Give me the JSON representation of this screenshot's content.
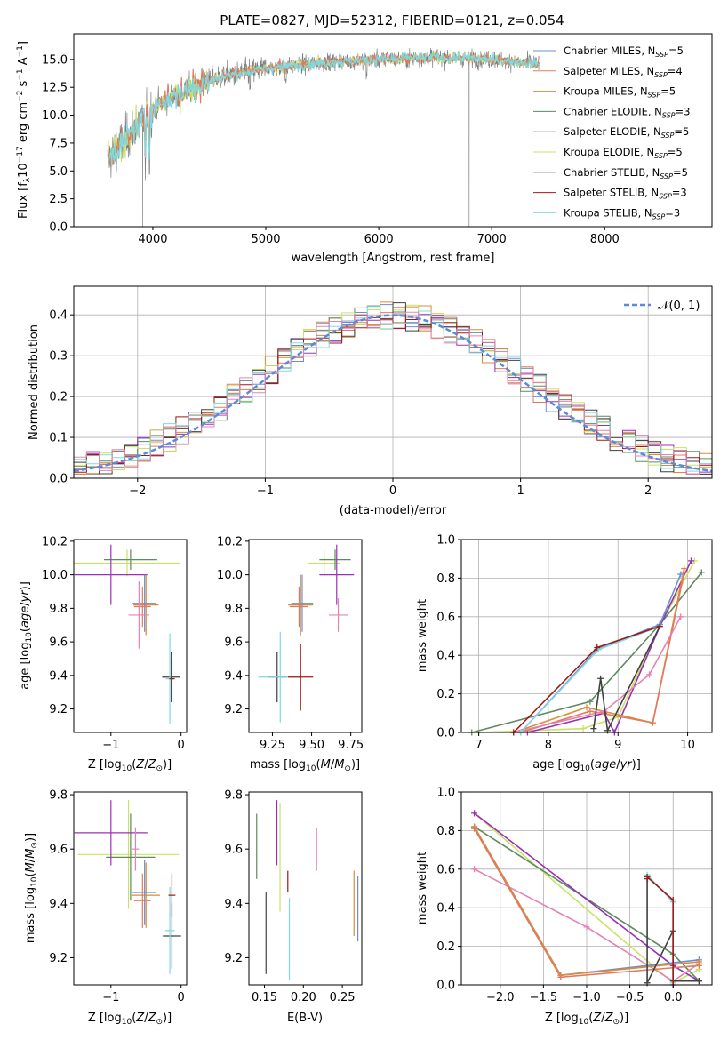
{
  "figure": {
    "title": "PLATE=0827, MJD=52312, FIBERID=0121, z=0.054"
  },
  "colors": {
    "Chabrier MILES": "#6b8ecf",
    "Salpeter MILES": "#e07a5f",
    "Kroupa MILES": "#d98c3a",
    "Chabrier ELODIE": "#5e8a5e",
    "Salpeter ELODIE": "#9b30b8",
    "Kroupa ELODIE": "#c9e265",
    "Chabrier STELIB": "#404040",
    "Salpeter STELIB": "#a01818",
    "Kroupa STELIB": "#80d8e0",
    "data": "#808080",
    "extra_pink": "#e383b4"
  },
  "chart_data": [
    {
      "id": "spectrum",
      "type": "line",
      "title": "PLATE=0827, MJD=52312, FIBERID=0121, z=0.054",
      "xlabel": "wavelength [Angstrom, rest frame]",
      "ylabel_parts": {
        "a": "Flux [f",
        "b": "λ",
        "c": "10",
        "d": "−17",
        "e": " erg cm",
        "f": "−2",
        "g": " s",
        "h": "−1",
        "i": " A",
        "j": "−1",
        "k": "]"
      },
      "xlim": [
        3300,
        8950
      ],
      "ylim": [
        0,
        17.3
      ],
      "xticks": [
        4000,
        5000,
        6000,
        7000,
        8000
      ],
      "yticks": [
        0.0,
        2.5,
        5.0,
        7.5,
        10.0,
        12.5,
        15.0
      ],
      "ytick_labels": [
        "0.0",
        "2.5",
        "5.0",
        "7.5",
        "10.0",
        "12.5",
        "15.0"
      ],
      "legend_position": "right",
      "legend": [
        {
          "model": "Chabrier MILES",
          "nssp": "5"
        },
        {
          "model": "Salpeter MILES",
          "nssp": "4"
        },
        {
          "model": "Kroupa MILES",
          "nssp": "5"
        },
        {
          "model": "Chabrier ELODIE",
          "nssp": "3"
        },
        {
          "model": "Salpeter ELODIE",
          "nssp": "5"
        },
        {
          "model": "Kroupa ELODIE",
          "nssp": "5"
        },
        {
          "model": "Chabrier STELIB",
          "nssp": "5"
        },
        {
          "model": "Salpeter STELIB",
          "nssp": "3"
        },
        {
          "model": "Kroupa STELIB",
          "nssp": "3"
        }
      ],
      "data_range": [
        3600,
        7420
      ],
      "continuum": [
        [
          3600,
          6.0
        ],
        [
          3750,
          7.8
        ],
        [
          3900,
          9.5
        ],
        [
          4050,
          11.0
        ],
        [
          4300,
          12.3
        ],
        [
          4600,
          13.4
        ],
        [
          5000,
          14.2
        ],
        [
          5500,
          14.7
        ],
        [
          6000,
          15.0
        ],
        [
          6500,
          15.2
        ],
        [
          7000,
          15.0
        ],
        [
          7420,
          14.6
        ]
      ],
      "features": [
        {
          "x": 3910,
          "y": 0.0
        },
        {
          "x": 6800,
          "y": 0.0
        },
        {
          "x": 7420,
          "y": 0.0
        }
      ]
    },
    {
      "id": "residuals",
      "type": "line",
      "xlabel": "(data-model)/error",
      "ylabel": "Normed distribution",
      "xlim": [
        -2.5,
        2.5
      ],
      "ylim": [
        0,
        0.47
      ],
      "xticks": [
        -2,
        -1,
        0,
        1,
        2
      ],
      "xtick_labels": [
        "−2",
        "−1",
        "0",
        "1",
        "2"
      ],
      "yticks": [
        0.0,
        0.1,
        0.2,
        0.3,
        0.4
      ],
      "ytick_labels": [
        "0.0",
        "0.1",
        "0.2",
        "0.3",
        "0.4"
      ],
      "grid": true,
      "legend_position": "top-right",
      "legend": [
        "𝒩(0, 1)"
      ],
      "gaussian": {
        "mean": 0,
        "sigma": 1
      },
      "bins": {
        "start": -2.5,
        "width": 0.1,
        "count": 50
      }
    },
    {
      "id": "age-vs-Z",
      "type": "scatter",
      "xlabel": "Z [log10(Z/Z⊙)]",
      "ylabel": "age [log10(age/yr)]",
      "xlim": [
        -1.53,
        0.08
      ],
      "ylim": [
        9.06,
        10.21
      ],
      "xticks": [
        -1,
        0
      ],
      "xtick_labels": [
        "−1",
        "0"
      ],
      "yticks": [
        9.2,
        9.4,
        9.6,
        9.8,
        10.0,
        10.2
      ],
      "ytick_labels": [
        "9.2",
        "9.4",
        "9.6",
        "9.8",
        "10.0",
        "10.2"
      ],
      "points": [
        {
          "model": "Kroupa ELODIE",
          "x": -0.77,
          "y": 10.07,
          "xerr": 0.76,
          "yerr": 0.08
        },
        {
          "model": "Chabrier ELODIE",
          "x": -0.72,
          "y": 10.09,
          "xerr": 0.38,
          "yerr": 0.06
        },
        {
          "model": "Salpeter ELODIE",
          "x": -1.0,
          "y": 10.0,
          "xerr": 0.52,
          "yerr": 0.18
        },
        {
          "model": "Kroupa MILES",
          "x": -0.5,
          "y": 9.82,
          "xerr": 0.18,
          "yerr": 0.18
        },
        {
          "model": "Chabrier MILES",
          "x": -0.52,
          "y": 9.83,
          "xerr": 0.17,
          "yerr": 0.17
        },
        {
          "model": "Salpeter MILES",
          "x": -0.55,
          "y": 9.81,
          "xerr": 0.12,
          "yerr": 0.12
        },
        {
          "model": "extra_pink",
          "x": -0.6,
          "y": 9.76,
          "xerr": 0.15,
          "yerr": 0.2
        },
        {
          "model": "Chabrier STELIB",
          "x": -0.14,
          "y": 9.39,
          "xerr": 0.13,
          "yerr": 0.15
        },
        {
          "model": "Kroupa STELIB",
          "x": -0.16,
          "y": 9.38,
          "xerr": 0.06,
          "yerr": 0.27
        },
        {
          "model": "Salpeter STELIB",
          "x": -0.13,
          "y": 9.38,
          "xerr": 0.04,
          "yerr": 0.12
        }
      ]
    },
    {
      "id": "age-vs-mass",
      "type": "scatter",
      "xlabel": "mass [log10(M/M⊙)]",
      "xlim": [
        9.1,
        9.82
      ],
      "ylim": [
        9.06,
        10.21
      ],
      "xticks": [
        9.25,
        9.5,
        9.75
      ],
      "xtick_labels": [
        "9.25",
        "9.50",
        "9.75"
      ],
      "yticks": [
        9.2,
        9.4,
        9.6,
        9.8,
        10.0,
        10.2
      ],
      "ytick_labels": [
        "9.2",
        "9.4",
        "9.6",
        "9.8",
        "10.0",
        "10.2"
      ],
      "points": [
        {
          "model": "Kroupa ELODIE",
          "x": 9.58,
          "y": 10.07,
          "xerr": 0.1,
          "yerr": 0.08
        },
        {
          "model": "Chabrier ELODIE",
          "x": 9.65,
          "y": 10.09,
          "xerr": 0.1,
          "yerr": 0.06
        },
        {
          "model": "Salpeter ELODIE",
          "x": 9.66,
          "y": 10.0,
          "xerr": 0.11,
          "yerr": 0.18
        },
        {
          "model": "Kroupa MILES",
          "x": 9.43,
          "y": 9.82,
          "xerr": 0.08,
          "yerr": 0.18
        },
        {
          "model": "Chabrier MILES",
          "x": 9.44,
          "y": 9.83,
          "xerr": 0.07,
          "yerr": 0.17
        },
        {
          "model": "Salpeter MILES",
          "x": 9.42,
          "y": 9.81,
          "xerr": 0.06,
          "yerr": 0.12
        },
        {
          "model": "extra_pink",
          "x": 9.67,
          "y": 9.76,
          "xerr": 0.06,
          "yerr": 0.1
        },
        {
          "model": "Chabrier STELIB",
          "x": 9.28,
          "y": 9.39,
          "xerr": 0.06,
          "yerr": 0.15
        },
        {
          "model": "Kroupa STELIB",
          "x": 9.3,
          "y": 9.39,
          "xerr": 0.14,
          "yerr": 0.27
        },
        {
          "model": "Salpeter STELIB",
          "x": 9.43,
          "y": 9.39,
          "xerr": 0.08,
          "yerr": 0.2
        }
      ]
    },
    {
      "id": "mass-weight-vs-age",
      "type": "line",
      "xlabel": "age [log10(age/yr)]",
      "ylabel": "mass weight",
      "xlim": [
        6.75,
        10.35
      ],
      "ylim": [
        0,
        1.0
      ],
      "xticks": [
        7,
        8,
        9,
        10
      ],
      "xtick_labels": [
        "7",
        "8",
        "9",
        "10"
      ],
      "yticks": [
        0.0,
        0.2,
        0.4,
        0.6,
        0.8,
        1.0
      ],
      "ytick_labels": [
        "0.0",
        "0.2",
        "0.4",
        "0.6",
        "0.8",
        "1.0"
      ],
      "grid": true,
      "series": [
        {
          "model": "Kroupa ELODIE",
          "points": [
            [
              7.0,
              0.0
            ],
            [
              8.5,
              0.02
            ],
            [
              9.0,
              0.08
            ],
            [
              9.6,
              0.55
            ],
            [
              10.1,
              0.89
            ]
          ]
        },
        {
          "model": "Chabrier ELODIE",
          "points": [
            [
              6.9,
              0.0
            ],
            [
              8.6,
              0.16
            ],
            [
              9.6,
              0.56
            ],
            [
              10.2,
              0.83
            ]
          ]
        },
        {
          "model": "Salpeter ELODIE",
          "points": [
            [
              7.7,
              0.0
            ],
            [
              8.8,
              0.1
            ],
            [
              8.95,
              0.0
            ],
            [
              9.6,
              0.55
            ],
            [
              10.05,
              0.89
            ]
          ]
        },
        {
          "model": "Kroupa MILES",
          "points": [
            [
              7.5,
              0.0
            ],
            [
              8.55,
              0.13
            ],
            [
              9.5,
              0.05
            ],
            [
              9.95,
              0.85
            ]
          ]
        },
        {
          "model": "Chabrier MILES",
          "points": [
            [
              7.6,
              0.0
            ],
            [
              8.7,
              0.43
            ],
            [
              9.6,
              0.56
            ],
            [
              9.9,
              0.82
            ]
          ]
        },
        {
          "model": "Salpeter MILES",
          "points": [
            [
              7.6,
              0.0
            ],
            [
              8.6,
              0.11
            ],
            [
              9.5,
              0.05
            ],
            [
              9.95,
              0.83
            ]
          ]
        },
        {
          "model": "extra_pink",
          "points": [
            [
              7.5,
              0.0
            ],
            [
              8.8,
              0.11
            ],
            [
              9.45,
              0.3
            ],
            [
              9.9,
              0.6
            ]
          ]
        },
        {
          "model": "Chabrier STELIB",
          "points": [
            [
              8.65,
              0.02
            ],
            [
              8.75,
              0.28
            ],
            [
              8.85,
              0.01
            ],
            [
              9.6,
              0.55
            ]
          ]
        },
        {
          "model": "Kroupa STELIB",
          "points": [
            [
              7.6,
              0.0
            ],
            [
              8.72,
              0.43
            ],
            [
              9.6,
              0.55
            ]
          ]
        },
        {
          "model": "Salpeter STELIB",
          "points": [
            [
              7.5,
              0.0
            ],
            [
              8.7,
              0.44
            ],
            [
              9.6,
              0.55
            ]
          ]
        }
      ]
    },
    {
      "id": "mass-vs-Z",
      "type": "scatter",
      "xlabel": "Z [log10(Z/Z⊙)]",
      "ylabel": "mass [log10(M/M⊙)]",
      "xlim": [
        -1.53,
        0.08
      ],
      "ylim": [
        9.1,
        9.81
      ],
      "xticks": [
        -1,
        0
      ],
      "xtick_labels": [
        "−1",
        "0"
      ],
      "yticks": [
        9.2,
        9.4,
        9.6,
        9.8
      ],
      "ytick_labels": [
        "9.2",
        "9.4",
        "9.6",
        "9.8"
      ],
      "points": [
        {
          "model": "Kroupa ELODIE",
          "x": -0.75,
          "y": 9.58,
          "xerr": 0.72,
          "yerr": 0.2
        },
        {
          "model": "Chabrier ELODIE",
          "x": -0.72,
          "y": 9.57,
          "xerr": 0.35,
          "yerr": 0.16
        },
        {
          "model": "Salpeter ELODIE",
          "x": -1.0,
          "y": 9.66,
          "xerr": 0.52,
          "yerr": 0.12
        },
        {
          "model": "Kroupa MILES",
          "x": -0.5,
          "y": 9.43,
          "xerr": 0.2,
          "yerr": 0.12
        },
        {
          "model": "Chabrier MILES",
          "x": -0.52,
          "y": 9.44,
          "xerr": 0.17,
          "yerr": 0.12
        },
        {
          "model": "Salpeter MILES",
          "x": -0.55,
          "y": 9.41,
          "xerr": 0.12,
          "yerr": 0.1
        },
        {
          "model": "extra_pink",
          "x": -0.65,
          "y": 9.6,
          "xerr": 0.05,
          "yerr": 0.08
        },
        {
          "model": "Chabrier STELIB",
          "x": -0.13,
          "y": 9.28,
          "xerr": 0.13,
          "yerr": 0.12
        },
        {
          "model": "Kroupa STELIB",
          "x": -0.16,
          "y": 9.3,
          "xerr": 0.07,
          "yerr": 0.16
        },
        {
          "model": "Salpeter STELIB",
          "x": -0.13,
          "y": 9.43,
          "xerr": 0.05,
          "yerr": 0.08
        }
      ]
    },
    {
      "id": "mass-vs-EBV",
      "type": "scatter",
      "xlabel": "E(B-V)",
      "xlim": [
        0.13,
        0.275
      ],
      "ylim": [
        9.1,
        9.81
      ],
      "xticks": [
        0.15,
        0.2,
        0.25
      ],
      "xtick_labels": [
        "0.15",
        "0.20",
        "0.25"
      ],
      "yticks": [
        9.2,
        9.4,
        9.6,
        9.8
      ],
      "ytick_labels": [
        "9.2",
        "9.4",
        "9.6",
        "9.8"
      ],
      "points": [
        {
          "model": "Chabrier ELODIE",
          "x": 0.14,
          "y": 9.61,
          "yerr": 0.12
        },
        {
          "model": "Chabrier STELIB",
          "x": 0.152,
          "y": 9.29,
          "yerr": 0.15
        },
        {
          "model": "Salpeter ELODIE",
          "x": 0.166,
          "y": 9.66,
          "yerr": 0.12
        },
        {
          "model": "Kroupa ELODIE",
          "x": 0.17,
          "y": 9.57,
          "yerr": 0.2
        },
        {
          "model": "Salpeter STELIB",
          "x": 0.18,
          "y": 9.48,
          "yerr": 0.04
        },
        {
          "model": "Kroupa STELIB",
          "x": 0.182,
          "y": 9.27,
          "yerr": 0.15
        },
        {
          "model": "extra_pink",
          "x": 0.217,
          "y": 9.6,
          "yerr": 0.08
        },
        {
          "model": "Kroupa MILES",
          "x": 0.265,
          "y": 9.4,
          "yerr": 0.12
        },
        {
          "model": "Chabrier MILES",
          "x": 0.27,
          "y": 9.38,
          "yerr": 0.12
        }
      ]
    },
    {
      "id": "mass-weight-vs-Z",
      "type": "line",
      "xlabel": "Z [log10(Z/Z⊙)]",
      "ylabel": "mass weight",
      "xlim": [
        -2.45,
        0.45
      ],
      "ylim": [
        0,
        1.0
      ],
      "xticks": [
        -2.0,
        -1.5,
        -1.0,
        -0.5,
        0.0
      ],
      "xtick_labels": [
        "−2.0",
        "−1.5",
        "−1.0",
        "−0.5",
        "0.0"
      ],
      "yticks": [
        0.0,
        0.2,
        0.4,
        0.6,
        0.8,
        1.0
      ],
      "ytick_labels": [
        "0.0",
        "0.2",
        "0.4",
        "0.6",
        "0.8",
        "1.0"
      ],
      "grid": true,
      "series": [
        {
          "model": "Kroupa ELODIE",
          "points": [
            [
              -2.3,
              0.89
            ],
            [
              0.0,
              0.01
            ],
            [
              0.3,
              0.08
            ]
          ]
        },
        {
          "model": "Chabrier ELODIE",
          "points": [
            [
              -2.3,
              0.82
            ],
            [
              0.0,
              0.16
            ],
            [
              0.3,
              0.02
            ]
          ]
        },
        {
          "model": "Salpeter ELODIE",
          "points": [
            [
              -2.3,
              0.89
            ],
            [
              0.0,
              0.1
            ],
            [
              0.3,
              0.02
            ]
          ]
        },
        {
          "model": "extra_pink",
          "points": [
            [
              -2.3,
              0.6
            ],
            [
              -1.0,
              0.3
            ],
            [
              0.0,
              0.02
            ],
            [
              0.3,
              0.11
            ]
          ]
        },
        {
          "model": "Chabrier MILES",
          "points": [
            [
              -2.3,
              0.82
            ],
            [
              -1.3,
              0.05
            ],
            [
              0.3,
              0.13
            ]
          ]
        },
        {
          "model": "Kroupa MILES",
          "points": [
            [
              -2.3,
              0.82
            ],
            [
              -1.3,
              0.05
            ],
            [
              0.3,
              0.12
            ]
          ]
        },
        {
          "model": "Salpeter MILES",
          "points": [
            [
              -2.3,
              0.81
            ],
            [
              -1.3,
              0.04
            ],
            [
              0.3,
              0.1
            ]
          ]
        },
        {
          "model": "Chabrier STELIB",
          "points": [
            [
              -0.3,
              0.55
            ],
            [
              -0.3,
              0.01
            ],
            [
              0.0,
              0.28
            ],
            [
              0.0,
              0.02
            ],
            [
              0.3,
              0.02
            ]
          ]
        },
        {
          "model": "Kroupa STELIB",
          "points": [
            [
              -0.3,
              0.57
            ],
            [
              0.0,
              0.43
            ],
            [
              0.0,
              0.01
            ]
          ]
        },
        {
          "model": "Salpeter STELIB",
          "points": [
            [
              -0.3,
              0.56
            ],
            [
              0.0,
              0.44
            ],
            [
              0.0,
              0.0
            ]
          ]
        }
      ]
    }
  ]
}
